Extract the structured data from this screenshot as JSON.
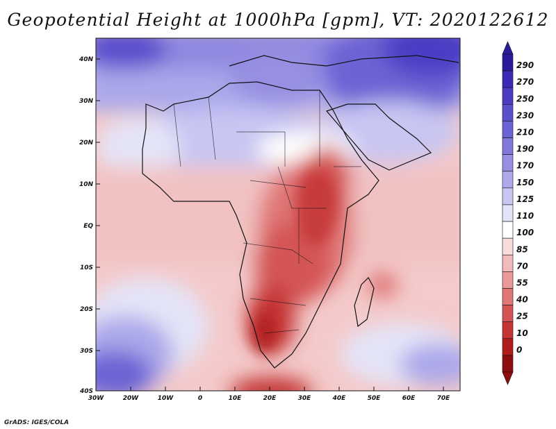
{
  "title": "Geopotential Height at 1000hPa [gpm], VT: 2020122612",
  "credit": "GrADS: IGES/COLA",
  "map": {
    "variable": "Geopotential Height",
    "level": "1000hPa",
    "units": "gpm",
    "valid_time": "2020122612",
    "lon_range": [
      "30W",
      "75E"
    ],
    "lat_range": [
      "40S",
      "45N"
    ],
    "lon_ticks": [
      "30W",
      "20W",
      "10W",
      "0",
      "10E",
      "20E",
      "30E",
      "40E",
      "50E",
      "60E",
      "70E"
    ],
    "lat_ticks": [
      "40N",
      "30N",
      "20N",
      "10N",
      "EQ",
      "10S",
      "20S",
      "30S",
      "40S"
    ]
  },
  "colorbar": {
    "labels": [
      "290",
      "270",
      "250",
      "230",
      "210",
      "190",
      "170",
      "150",
      "125",
      "110",
      "100",
      "85",
      "70",
      "55",
      "40",
      "25",
      "10",
      "0"
    ],
    "colors": [
      "#2a1c9c",
      "#3a2ab4",
      "#4b3cc4",
      "#5a50cc",
      "#6c64d4",
      "#8078dc",
      "#968fe2",
      "#aca8ea",
      "#c8c6f2",
      "#e4e4f8",
      "#ffffff",
      "#f8dcdc",
      "#f2baba",
      "#ea9a9a",
      "#e07676",
      "#d45454",
      "#c43636",
      "#b01c1c",
      "#8c0e0e"
    ]
  }
}
